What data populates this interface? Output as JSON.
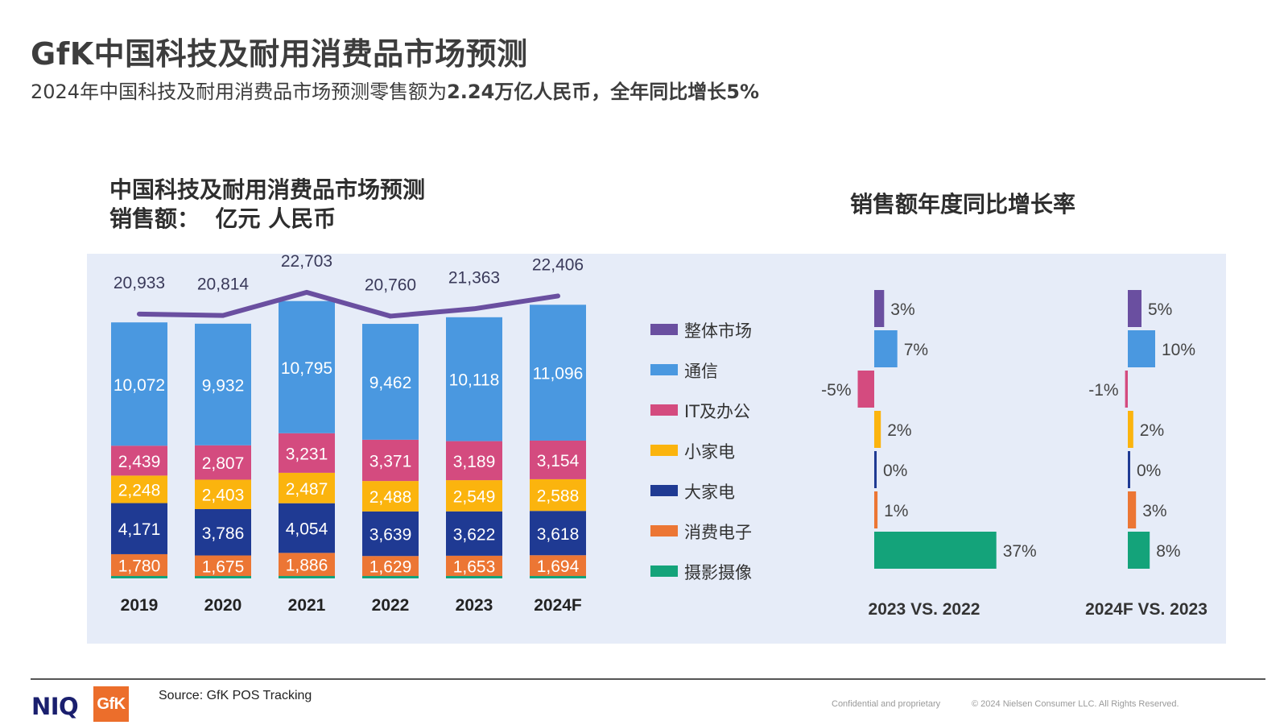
{
  "header": {
    "title": "GfK中国科技及耐用消费品市场预测",
    "subtitle_plain": "2024年中国科技及耐用消费品市场预测零售额为",
    "subtitle_bold": "2.24万亿人民币，全年同比增长5%"
  },
  "chart_heading": {
    "line1": "中国科技及耐用消费品市场预测",
    "line2": "销售额：  亿元 人民币"
  },
  "growth_heading": "销售额年度同比增长率",
  "chart_data": [
    {
      "type": "bar",
      "stacked": true,
      "title": "中国科技及耐用消费品市场预测",
      "subtitle": "销售额：  亿元 人民币",
      "categories": [
        "2019",
        "2020",
        "2021",
        "2022",
        "2023",
        "2024F"
      ],
      "series": [
        {
          "name": "摄影摄像",
          "color": "#14a37a",
          "values": [
            null,
            null,
            null,
            null,
            null,
            null
          ]
        },
        {
          "name": "消费电子",
          "color": "#ec7634",
          "values": [
            1780,
            1675,
            1886,
            1629,
            1653,
            1694
          ]
        },
        {
          "name": "大家电",
          "color": "#1f3a93",
          "values": [
            4171,
            3786,
            4054,
            3639,
            3622,
            3618
          ]
        },
        {
          "name": "小家电",
          "color": "#fbb40e",
          "values": [
            2248,
            2403,
            2487,
            2488,
            2549,
            2588
          ]
        },
        {
          "name": "IT及办公",
          "color": "#d44b7f",
          "values": [
            2439,
            2807,
            3231,
            3371,
            3189,
            3154
          ]
        },
        {
          "name": "通信",
          "color": "#4a98e0",
          "values": [
            10072,
            9932,
            10795,
            9462,
            10118,
            11096
          ]
        }
      ],
      "total_line": {
        "name": "整体市场",
        "color": "#6a4fa0",
        "values": [
          20933,
          20814,
          22703,
          20760,
          21363,
          22406
        ]
      },
      "total_labels": [
        "20,933",
        "20,814",
        "22,703",
        "20,760",
        "21,363",
        "22,406"
      ],
      "segment_labels": {
        "消费电子": [
          "1,780",
          "1,675",
          "1,886",
          "1,629",
          "1,653",
          "1,694"
        ],
        "大家电": [
          "4,171",
          "3,786",
          "4,054",
          "3,639",
          "3,622",
          "3,618"
        ],
        "小家电": [
          "2,248",
          "2,403",
          "2,487",
          "2,488",
          "2,549",
          "2,588"
        ],
        "IT及办公": [
          "2,439",
          "2,807",
          "3,231",
          "3,371",
          "3,189",
          "3,154"
        ],
        "通信": [
          "10,072",
          "9,932",
          "10,795",
          "9,462",
          "10,118",
          "11,096"
        ]
      },
      "legend": [
        "整体市场",
        "通信",
        "IT及办公",
        "小家电",
        "大家电",
        "消费电子",
        "摄影摄像"
      ],
      "legend_position": "right",
      "ylim": [
        0,
        23000
      ],
      "grid": false
    },
    {
      "type": "bar",
      "orientation": "horizontal",
      "title": "销售额年度同比增长率",
      "xlabel": "2023 VS. 2022",
      "categories": [
        "整体市场",
        "通信",
        "IT及办公",
        "小家电",
        "大家电",
        "消费电子",
        "摄影摄像"
      ],
      "values": [
        3,
        7,
        -5,
        2,
        0,
        1,
        37
      ],
      "labels": [
        "3%",
        "7%",
        "-5%",
        "2%",
        "0%",
        "1%",
        "37%"
      ],
      "colors": [
        "#6a4fa0",
        "#4a98e0",
        "#d44b7f",
        "#fbb40e",
        "#1f3a93",
        "#ec7634",
        "#14a37a"
      ]
    },
    {
      "type": "bar",
      "orientation": "horizontal",
      "xlabel": "2024F VS. 2023",
      "categories": [
        "整体市场",
        "通信",
        "IT及办公",
        "小家电",
        "大家电",
        "消费电子",
        "摄影摄像"
      ],
      "values": [
        5,
        10,
        -1,
        2,
        0,
        3,
        8
      ],
      "labels": [
        "5%",
        "10%",
        "-1%",
        "2%",
        "0%",
        "3%",
        "8%"
      ],
      "colors": [
        "#6a4fa0",
        "#4a98e0",
        "#d44b7f",
        "#fbb40e",
        "#1f3a93",
        "#ec7634",
        "#14a37a"
      ]
    }
  ],
  "footer": {
    "niq_logo": "NIQ",
    "gfk_logo": "GfK",
    "source": "Source: GfK POS Tracking",
    "confidential": "Confidential and proprietary",
    "copyright": "© 2024 Nielsen Consumer LLC. All Rights Reserved."
  }
}
